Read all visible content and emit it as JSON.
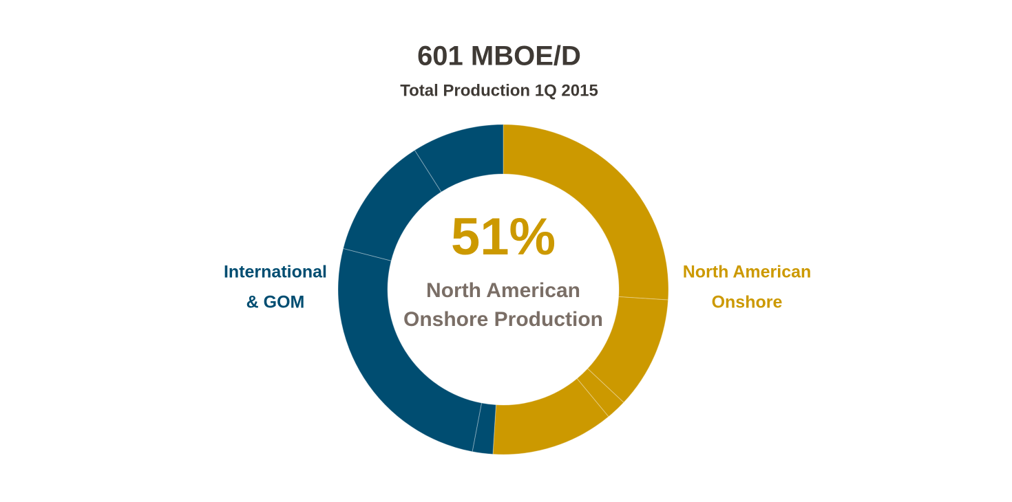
{
  "chart_data": {
    "type": "donut",
    "title": "601 MBOE/D",
    "subtitle": "Total Production 1Q 2015",
    "values": [
      26,
      11,
      2,
      12,
      2,
      26,
      12,
      9
    ],
    "colors": [
      "#cc9900",
      "#cc9900",
      "#cc9900",
      "#cc9900",
      "#004d71",
      "#004d71",
      "#004d71",
      "#004d71"
    ],
    "center": {
      "value": 51,
      "label": "51%",
      "text": [
        "North American",
        "Onshore Production"
      ]
    },
    "groups": [
      {
        "lines": [
          "North American",
          "Onshore"
        ],
        "color": "#cc9900",
        "side": "right"
      },
      {
        "lines": [
          "International",
          "& GOM"
        ],
        "color": "#004d71",
        "side": "left"
      }
    ]
  }
}
